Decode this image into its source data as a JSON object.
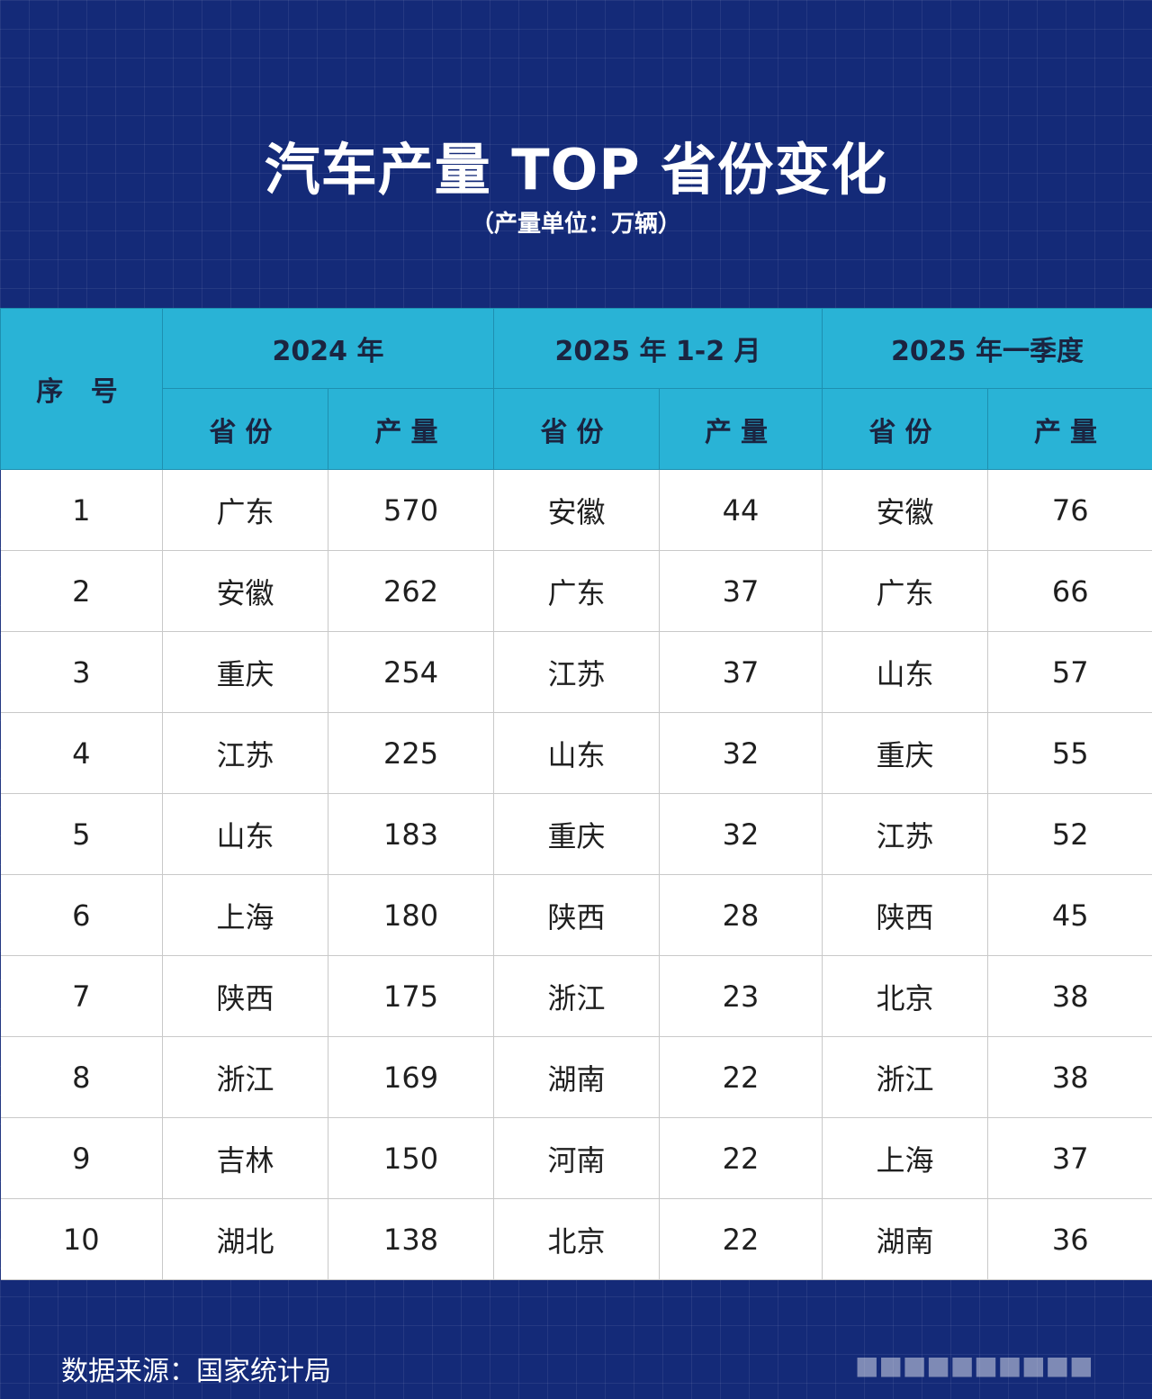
{
  "title": "汽车产量 TOP 省份变化",
  "subtitle": "（产量单位：万辆）",
  "header": {
    "rank": "序 号",
    "groups": [
      "2024 年",
      "2025 年 1-2 月",
      "2025 年一季度"
    ],
    "province": "省份",
    "output": "产量"
  },
  "rows": [
    [
      "1",
      "广东",
      "570",
      "安徽",
      "44",
      "安徽",
      "76"
    ],
    [
      "2",
      "安徽",
      "262",
      "广东",
      "37",
      "广东",
      "66"
    ],
    [
      "3",
      "重庆",
      "254",
      "江苏",
      "37",
      "山东",
      "57"
    ],
    [
      "4",
      "江苏",
      "225",
      "山东",
      "32",
      "重庆",
      "55"
    ],
    [
      "5",
      "山东",
      "183",
      "重庆",
      "32",
      "江苏",
      "52"
    ],
    [
      "6",
      "上海",
      "180",
      "陕西",
      "28",
      "陕西",
      "45"
    ],
    [
      "7",
      "陕西",
      "175",
      "浙江",
      "23",
      "北京",
      "38"
    ],
    [
      "8",
      "浙江",
      "169",
      "湖南",
      "22",
      "浙江",
      "38"
    ],
    [
      "9",
      "吉林",
      "150",
      "河南",
      "22",
      "上海",
      "37"
    ],
    [
      "10",
      "湖北",
      "138",
      "北京",
      "22",
      "湖南",
      "36"
    ]
  ],
  "footer": "数据来源：国家统计局",
  "colors": {
    "background": "#142a78",
    "header": "#29b3d6",
    "header_text": "#1b2440",
    "body": "#ffffff"
  }
}
